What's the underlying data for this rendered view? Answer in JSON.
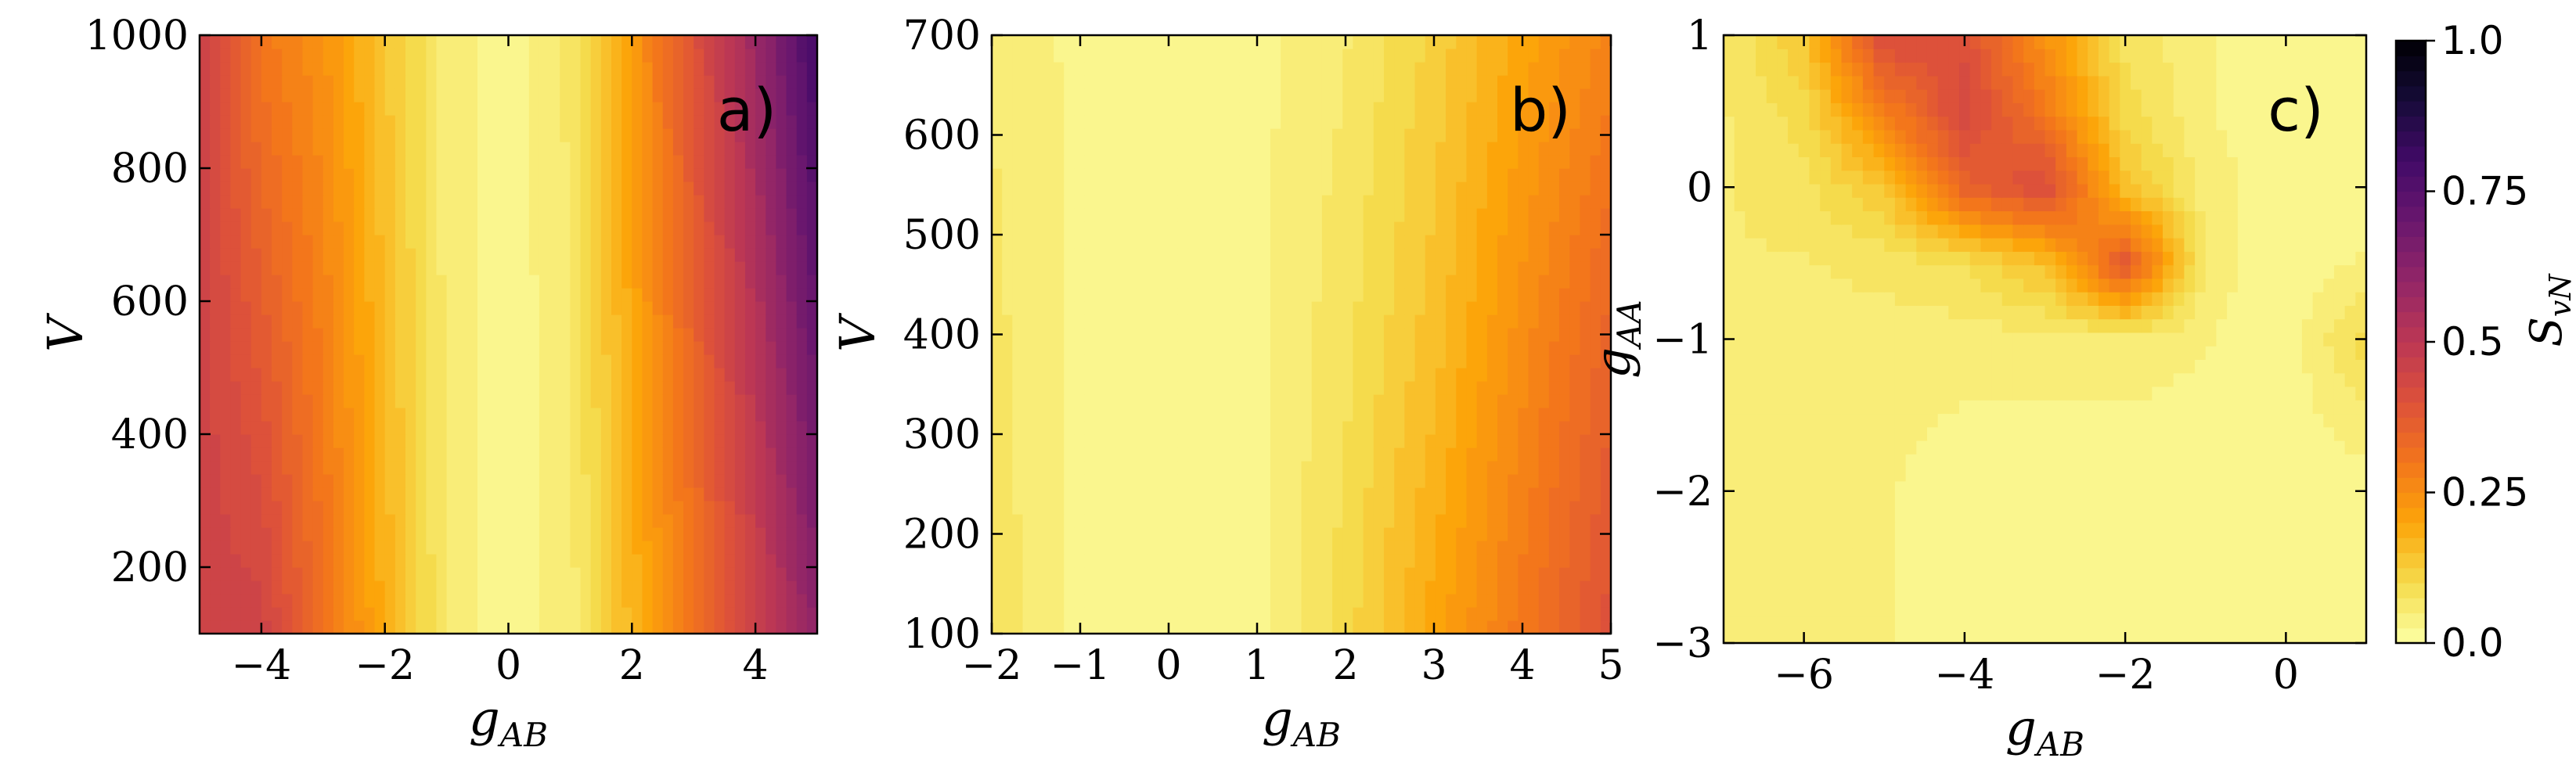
{
  "figure": {
    "colormap": "inferno_r",
    "colorbar": {
      "label": "S_vN",
      "label_main": "S",
      "label_sub": "vN",
      "range": [
        0.0,
        1.0
      ],
      "ticks": [
        "0.0",
        "0.25",
        "0.5",
        "0.75",
        "1.0"
      ],
      "tick_values": [
        0.0,
        0.25,
        0.5,
        0.75,
        1.0
      ]
    }
  },
  "chart_data": [
    {
      "type": "heatmap",
      "panel_label": "a)",
      "xlabel_main": "g",
      "xlabel_sub": "AB",
      "ylabel_main": "V",
      "ylabel_sub": "",
      "xlim": [
        -5,
        5
      ],
      "ylim": [
        100,
        1000
      ],
      "xticks": [
        -4,
        -2,
        0,
        2,
        4
      ],
      "xtick_labels": [
        "−4",
        "−2",
        "0",
        "2",
        "4"
      ],
      "yticks": [
        200,
        400,
        600,
        800,
        1000
      ],
      "ytick_labels": [
        "200",
        "400",
        "600",
        "800",
        "1000"
      ],
      "x": [
        -5,
        -4,
        -3,
        -2,
        -1,
        0,
        1,
        2,
        3,
        4,
        5
      ],
      "y": [
        100,
        1000
      ],
      "z": [
        [
          0.45,
          0.45,
          0.32,
          0.18,
          0.06,
          0.02,
          0.05,
          0.17,
          0.3,
          0.45,
          0.62
        ],
        [
          0.45,
          0.3,
          0.24,
          0.14,
          0.05,
          0.02,
          0.07,
          0.22,
          0.4,
          0.58,
          0.8
        ]
      ]
    },
    {
      "type": "heatmap",
      "panel_label": "b)",
      "xlabel_main": "g",
      "xlabel_sub": "AB",
      "ylabel_main": "V",
      "ylabel_sub": "",
      "xlim": [
        -2,
        5
      ],
      "ylim": [
        100,
        700
      ],
      "xticks": [
        -2,
        -1,
        0,
        1,
        2,
        3,
        4,
        5
      ],
      "xtick_labels": [
        "−2",
        "−1",
        "0",
        "1",
        "2",
        "3",
        "4",
        "5"
      ],
      "yticks": [
        100,
        200,
        300,
        400,
        500,
        600,
        700
      ],
      "ytick_labels": [
        "100",
        "200",
        "300",
        "400",
        "500",
        "600",
        "700"
      ],
      "x": [
        -2,
        -1,
        0,
        1,
        2,
        3,
        4,
        5
      ],
      "y": [
        100,
        400,
        700
      ],
      "z": [
        [
          0.08,
          0.03,
          0.02,
          0.03,
          0.1,
          0.2,
          0.3,
          0.4
        ],
        [
          0.07,
          0.03,
          0.02,
          0.03,
          0.08,
          0.15,
          0.25,
          0.35
        ],
        [
          0.06,
          0.03,
          0.02,
          0.03,
          0.06,
          0.12,
          0.2,
          0.27
        ]
      ]
    },
    {
      "type": "heatmap",
      "panel_label": "c)",
      "xlabel_main": "g",
      "xlabel_sub": "AB",
      "ylabel_main": "g",
      "ylabel_sub": "AA",
      "xlim": [
        -7,
        1
      ],
      "ylim": [
        -3,
        1
      ],
      "xticks": [
        -6,
        -4,
        -2,
        0
      ],
      "xtick_labels": [
        "−6",
        "−4",
        "−2",
        "0"
      ],
      "yticks": [
        -3,
        -2,
        -1,
        0,
        1
      ],
      "ytick_labels": [
        "−3",
        "−2",
        "−1",
        "0",
        "1"
      ],
      "x": [
        -7,
        -6,
        -5,
        -4,
        -3,
        -2,
        -1,
        0,
        1
      ],
      "y": [
        -3,
        -2,
        -1,
        -0.5,
        0,
        0.5,
        1
      ],
      "z": [
        [
          0.06,
          0.06,
          0.04,
          0.02,
          0.02,
          0.02,
          0.02,
          0.02,
          0.02
        ],
        [
          0.06,
          0.06,
          0.04,
          0.02,
          0.02,
          0.02,
          0.02,
          0.02,
          0.02
        ],
        [
          0.06,
          0.06,
          0.05,
          0.05,
          0.05,
          0.05,
          0.04,
          0.02,
          0.1
        ],
        [
          0.06,
          0.06,
          0.07,
          0.09,
          0.15,
          0.38,
          0.05,
          0.02,
          0.04
        ],
        [
          0.06,
          0.08,
          0.14,
          0.35,
          0.42,
          0.15,
          0.05,
          0.02,
          0.03
        ],
        [
          0.06,
          0.1,
          0.28,
          0.43,
          0.3,
          0.1,
          0.04,
          0.02,
          0.02
        ],
        [
          0.06,
          0.14,
          0.42,
          0.4,
          0.24,
          0.08,
          0.04,
          0.02,
          0.02
        ]
      ]
    }
  ]
}
